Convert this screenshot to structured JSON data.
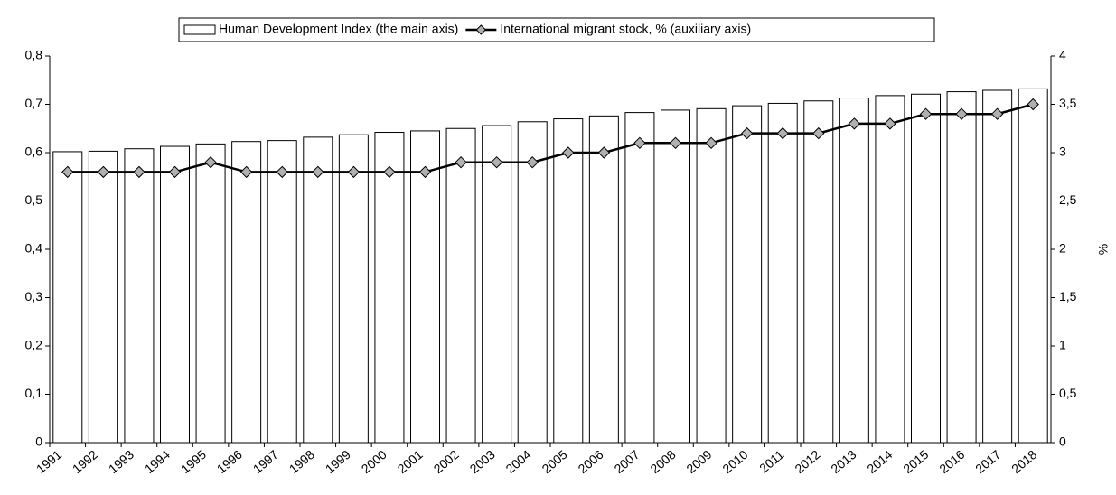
{
  "chart_data": {
    "type": "bar_line",
    "categories": [
      "1991",
      "1992",
      "1993",
      "1994",
      "1995",
      "1996",
      "1997",
      "1998",
      "1999",
      "2000",
      "2001",
      "2002",
      "2003",
      "2004",
      "2005",
      "2006",
      "2007",
      "2008",
      "2009",
      "2010",
      "2011",
      "2012",
      "2013",
      "2014",
      "2015",
      "2016",
      "2017",
      "2018"
    ],
    "series": [
      {
        "name": "Human Development Index (the main axis)",
        "type": "bar",
        "color": "#ffffff",
        "values": [
          0.602,
          0.603,
          0.608,
          0.613,
          0.618,
          0.623,
          0.625,
          0.632,
          0.637,
          0.642,
          0.645,
          0.65,
          0.656,
          0.664,
          0.67,
          0.676,
          0.683,
          0.688,
          0.691,
          0.697,
          0.702,
          0.707,
          0.713,
          0.718,
          0.721,
          0.726,
          0.729,
          0.732
        ]
      },
      {
        "name": "International migrant stock, % (auxiliary axis)",
        "type": "line",
        "axis": "y2",
        "color": "#000000",
        "marker_color": "#b0b0b0",
        "values": [
          2.8,
          2.8,
          2.8,
          2.8,
          2.9,
          2.8,
          2.8,
          2.8,
          2.8,
          2.8,
          2.8,
          2.9,
          2.9,
          2.9,
          3.0,
          3.0,
          3.1,
          3.1,
          3.1,
          3.2,
          3.2,
          3.2,
          3.3,
          3.3,
          3.4,
          3.4,
          3.4,
          3.5
        ]
      }
    ],
    "ylim": [
      0,
      0.8
    ],
    "yticks": [
      0,
      {
        "value": 0.1,
        "label": "0,1"
      },
      {
        "value": 0.2,
        "label": "0,2"
      },
      {
        "value": 0.3,
        "label": "0,3"
      },
      {
        "value": 0.4,
        "label": "0,4"
      },
      {
        "value": 0.5,
        "label": "0,5"
      },
      {
        "value": 0.6,
        "label": "0,6"
      },
      {
        "value": 0.7,
        "label": "0,7"
      },
      {
        "value": 0.8,
        "label": "0,8"
      }
    ],
    "y2lim": [
      0,
      4
    ],
    "y2ticks": [
      0,
      {
        "value": 0.5,
        "label": "0,5"
      },
      1,
      {
        "value": 1.5,
        "label": "1,5"
      },
      2,
      {
        "value": 2.5,
        "label": "2,5"
      },
      3,
      {
        "value": 3.5,
        "label": "3,5"
      },
      4
    ],
    "y2label": "%",
    "legend": "top",
    "grid": false
  }
}
